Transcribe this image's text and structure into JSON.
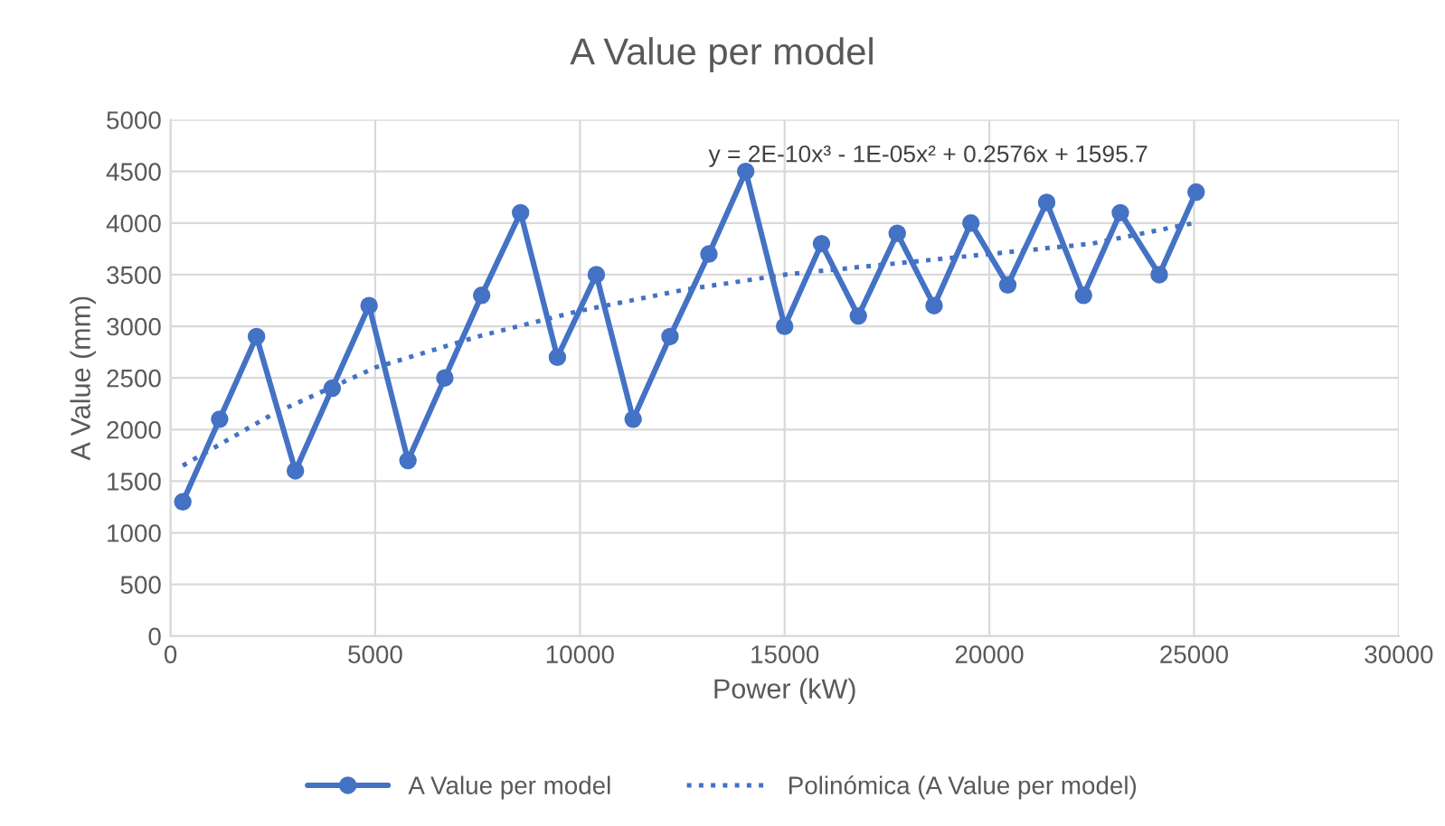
{
  "chart_data": {
    "type": "line",
    "title": "A Value per model",
    "xlabel": "Power (kW)",
    "ylabel": "A Value (mm)",
    "xlim": [
      0,
      30000
    ],
    "xticks": [
      0,
      5000,
      10000,
      15000,
      20000,
      25000,
      30000
    ],
    "ylim": [
      0,
      5000
    ],
    "yticks": [
      0,
      500,
      1000,
      1500,
      2000,
      2500,
      3000,
      3500,
      4000,
      4500,
      5000
    ],
    "grid": true,
    "legend": "bottom",
    "annotations": [
      "y = 2E-10x³ - 1E-05x² + 0.2576x + 1595.7"
    ],
    "series": [
      {
        "name": "A Value per model",
        "color": "#4472c4",
        "marker": "circle",
        "line_style": "solid",
        "x": [
          300,
          1200,
          2100,
          3050,
          3950,
          4850,
          5800,
          6700,
          7600,
          8550,
          9450,
          10400,
          11300,
          12200,
          13150,
          14050,
          15000,
          15900,
          16800,
          17750,
          18650,
          19550,
          20450,
          21400,
          22300,
          23200,
          24150,
          25050
        ],
        "values": [
          1300,
          2100,
          2900,
          1600,
          2400,
          3200,
          1700,
          2500,
          3300,
          4100,
          2700,
          3500,
          2100,
          2900,
          3700,
          4500,
          3000,
          3800,
          3100,
          3900,
          3200,
          4000,
          3400,
          4200,
          3300,
          4100,
          3500,
          4300
        ]
      },
      {
        "name": "Polinómica (A Value per model)",
        "color": "#4472c4",
        "marker": "none",
        "line_style": "dotted",
        "x": [
          300,
          2500,
          5000,
          7500,
          10000,
          12500,
          15000,
          17500,
          20000,
          22500,
          25000
        ],
        "values": [
          1650,
          2150,
          2600,
          2900,
          3150,
          3350,
          3500,
          3600,
          3700,
          3800,
          4000
        ]
      }
    ]
  }
}
